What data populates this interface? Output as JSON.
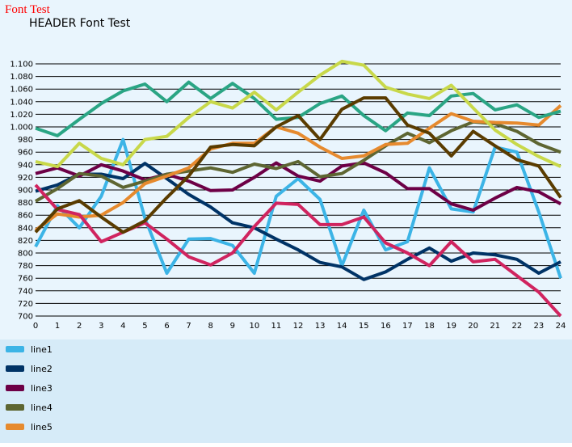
{
  "top_title": "Font Test",
  "header_title": "HEADER Font Test",
  "colors": {
    "page_bg": "#e9f5fd",
    "legend_bg": "#d6ebf8",
    "top_title": "#ff0000",
    "gridline": "#000000"
  },
  "chart_data": {
    "type": "line",
    "x": [
      0,
      1,
      2,
      3,
      4,
      5,
      6,
      7,
      8,
      9,
      10,
      11,
      12,
      13,
      14,
      15,
      16,
      17,
      18,
      19,
      20,
      21,
      22,
      23,
      24
    ],
    "xlim": [
      0,
      24
    ],
    "ylim": [
      700,
      1100
    ],
    "y_ticks": [
      "1.100",
      "1.080",
      "1.060",
      "1.040",
      "1.020",
      "1.000",
      "980",
      "960",
      "940",
      "920",
      "900",
      "880",
      "860",
      "840",
      "820",
      "800",
      "780",
      "760",
      "740",
      "720",
      "700"
    ],
    "x_ticks": [
      "0",
      "1",
      "2",
      "3",
      "4",
      "5",
      "6",
      "7",
      "8",
      "9",
      "10",
      "11",
      "12",
      "13",
      "14",
      "15",
      "16",
      "17",
      "18",
      "19",
      "20",
      "21",
      "22",
      "23",
      "24"
    ],
    "grid": "horizontal",
    "legend_position": "bottom-left",
    "series": [
      {
        "name": "line1",
        "color": "#3cb4e6",
        "legend": true,
        "values": [
          810,
          875,
          840,
          890,
          980,
          855,
          768,
          822,
          823,
          812,
          768,
          890,
          918,
          885,
          780,
          868,
          805,
          818,
          935,
          870,
          865,
          968,
          960,
          865,
          760
        ]
      },
      {
        "name": "line2",
        "color": "#003366",
        "legend": true,
        "values": [
          898,
          908,
          925,
          925,
          918,
          942,
          918,
          893,
          873,
          848,
          840,
          822,
          805,
          785,
          778,
          758,
          770,
          790,
          808,
          787,
          800,
          797,
          790,
          768,
          786
        ]
      },
      {
        "name": "line3",
        "color": "#6d0046",
        "legend": true,
        "values": [
          926,
          935,
          922,
          940,
          930,
          916,
          925,
          914,
          899,
          900,
          920,
          943,
          922,
          914,
          938,
          943,
          927,
          902,
          902,
          878,
          868,
          887,
          904,
          897,
          878
        ]
      },
      {
        "name": "line4",
        "color": "#5e6632",
        "legend": true,
        "values": [
          882,
          902,
          926,
          922,
          904,
          914,
          925,
          930,
          935,
          928,
          941,
          934,
          945,
          921,
          926,
          947,
          970,
          990,
          975,
          994,
          1008,
          1005,
          993,
          973,
          960
        ]
      },
      {
        "name": "line5",
        "color": "#e68a2e",
        "legend": true,
        "values": [
          836,
          862,
          857,
          860,
          880,
          910,
          922,
          935,
          965,
          974,
          974,
          1000,
          990,
          968,
          950,
          954,
          972,
          974,
          998,
          1021,
          1009,
          1007,
          1006,
          1003,
          1034
        ]
      },
      {
        "name": "",
        "color": "#d0245f",
        "legend": false,
        "values": [
          908,
          869,
          861,
          818,
          833,
          848,
          822,
          794,
          781,
          800,
          842,
          879,
          877,
          845,
          845,
          857,
          816,
          800,
          780,
          818,
          786,
          790,
          764,
          738,
          700
        ]
      },
      {
        "name": "",
        "color": "#2aa584",
        "legend": false,
        "values": [
          998,
          986,
          1012,
          1037,
          1057,
          1068,
          1040,
          1071,
          1045,
          1069,
          1045,
          1012,
          1015,
          1037,
          1049,
          1018,
          994,
          1022,
          1018,
          1049,
          1053,
          1027,
          1035,
          1015,
          1025
        ]
      },
      {
        "name": "",
        "color": "#5a3c00",
        "legend": false,
        "values": [
          833,
          870,
          883,
          857,
          833,
          851,
          888,
          922,
          968,
          972,
          970,
          1000,
          1018,
          980,
          1028,
          1046,
          1046,
          1003,
          990,
          954,
          993,
          970,
          948,
          938,
          888
        ]
      },
      {
        "name": "",
        "color": "#c8d84a",
        "legend": false,
        "values": [
          945,
          937,
          974,
          950,
          940,
          980,
          985,
          1015,
          1040,
          1030,
          1055,
          1027,
          1055,
          1082,
          1104,
          1098,
          1063,
          1052,
          1045,
          1066,
          1030,
          995,
          972,
          953,
          937
        ]
      }
    ]
  }
}
